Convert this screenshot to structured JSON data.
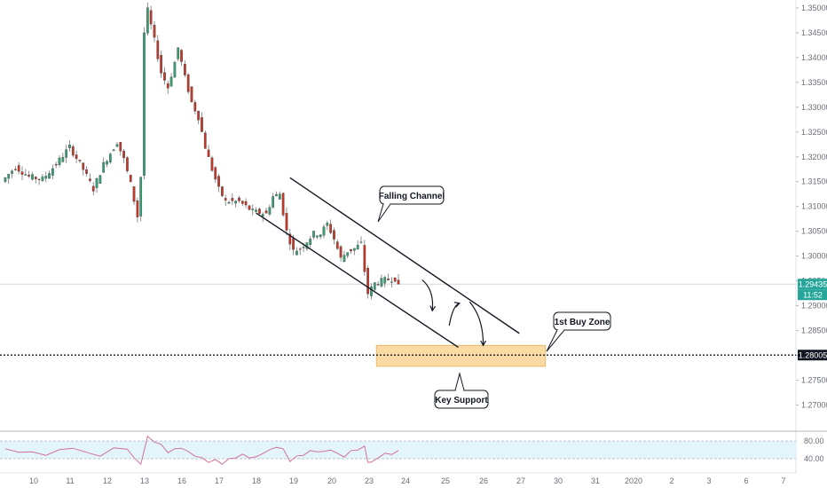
{
  "chart_data": {
    "type": "candlestick",
    "x_tick_labels": [
      "10",
      "11",
      "12",
      "13",
      "16",
      "17",
      "18",
      "19",
      "20",
      "23",
      "24",
      "25",
      "26",
      "27",
      "30",
      "31",
      "2020",
      "2",
      "3",
      "6",
      "7"
    ],
    "y_tick_labels": [
      "1.35000",
      "1.34500",
      "1.34000",
      "1.33500",
      "1.33000",
      "1.32500",
      "1.32000",
      "1.31500",
      "1.31000",
      "1.30500",
      "1.30000",
      "1.29500",
      "1.29000",
      "1.28500",
      "1.28000",
      "1.27500",
      "1.27000"
    ],
    "ylim": [
      1.2655,
      1.3515
    ],
    "price_path": [
      [
        0,
        1.315
      ],
      [
        4,
        1.318
      ],
      [
        8,
        1.316
      ],
      [
        12,
        1.3155
      ],
      [
        16,
        1.3185
      ],
      [
        20,
        1.322
      ],
      [
        24,
        1.3175
      ],
      [
        27,
        1.3135
      ],
      [
        30,
        1.3185
      ],
      [
        34,
        1.323
      ],
      [
        36,
        1.3195
      ],
      [
        38,
        1.3145
      ],
      [
        40,
        1.308
      ],
      [
        40.5,
        1.307
      ],
      [
        41,
        1.316
      ],
      [
        42,
        1.345
      ],
      [
        43,
        1.3495
      ],
      [
        45,
        1.3435
      ],
      [
        47,
        1.337
      ],
      [
        49,
        1.334
      ],
      [
        51,
        1.339
      ],
      [
        52,
        1.342
      ],
      [
        54,
        1.336
      ],
      [
        56,
        1.331
      ],
      [
        58,
        1.328
      ],
      [
        60,
        1.322
      ],
      [
        62,
        1.3175
      ],
      [
        64,
        1.3135
      ],
      [
        66,
        1.311
      ],
      [
        70,
        1.311
      ],
      [
        74,
        1.309
      ],
      [
        78,
        1.3085
      ],
      [
        80,
        1.312
      ],
      [
        82,
        1.3125
      ],
      [
        84,
        1.305
      ],
      [
        86,
        1.301
      ],
      [
        88,
        1.3015
      ],
      [
        90,
        1.303
      ],
      [
        92,
        1.3045
      ],
      [
        94,
        1.3045
      ],
      [
        96,
        1.3065
      ],
      [
        98,
        1.3035
      ],
      [
        100,
        1.2995
      ],
      [
        102,
        1.301
      ],
      [
        104,
        1.3015
      ],
      [
        106,
        1.3025
      ],
      [
        107,
        1.297
      ],
      [
        108,
        1.2925
      ],
      [
        109,
        1.2935
      ],
      [
        110,
        1.2945
      ],
      [
        113,
        1.2952
      ],
      [
        116,
        1.2955
      ]
    ],
    "last_price": "1.29435",
    "countdown": "11:52",
    "key_level_label": "1.28005",
    "key_level_value": 1.28005,
    "channel_upper": [
      [
        1.3165,
        79
      ],
      [
        1.2846,
        143
      ]
    ],
    "channel_lower": [
      [
        1.3094,
        69
      ],
      [
        1.2818,
        125
      ]
    ],
    "buy_zone": {
      "x_range": [
        104,
        152
      ],
      "y_range": [
        1.2778,
        1.282
      ]
    },
    "arrows": [
      {
        "from": [
          1.2952,
          118
        ],
        "to": [
          1.289,
          121
        ]
      },
      {
        "from": [
          1.286,
          126
        ],
        "to": [
          1.2905,
          129
        ]
      },
      {
        "from": [
          1.2908,
          132
        ],
        "to": [
          1.282,
          136
        ]
      }
    ],
    "annotations": [
      {
        "text": "Falling Channel",
        "anchor": [
          1.306,
          105
        ]
      },
      {
        "text": "1st Buy Zone",
        "anchor": [
          1.2812,
          153
        ]
      },
      {
        "text": "Key Support",
        "anchor": [
          1.2778,
          128
        ]
      }
    ],
    "indicator": {
      "tick_labels": [
        "80.00",
        "40.00"
      ],
      "levels": [
        80,
        40
      ],
      "ylim": [
        20,
        100
      ],
      "values": [
        [
          0,
          60
        ],
        [
          4,
          57
        ],
        [
          8,
          53
        ],
        [
          12,
          50
        ],
        [
          16,
          58
        ],
        [
          20,
          66
        ],
        [
          24,
          52
        ],
        [
          28,
          48
        ],
        [
          32,
          62
        ],
        [
          36,
          64
        ],
        [
          38,
          40
        ],
        [
          40,
          30
        ],
        [
          42,
          88
        ],
        [
          44,
          80
        ],
        [
          46,
          70
        ],
        [
          48,
          56
        ],
        [
          50,
          60
        ],
        [
          52,
          66
        ],
        [
          54,
          54
        ],
        [
          56,
          48
        ],
        [
          58,
          40
        ],
        [
          60,
          34
        ],
        [
          62,
          36
        ],
        [
          64,
          30
        ],
        [
          66,
          38
        ],
        [
          68,
          44
        ],
        [
          70,
          48
        ],
        [
          72,
          44
        ],
        [
          74,
          42
        ],
        [
          76,
          54
        ],
        [
          78,
          58
        ],
        [
          80,
          68
        ],
        [
          82,
          60
        ],
        [
          84,
          36
        ],
        [
          86,
          44
        ],
        [
          88,
          50
        ],
        [
          90,
          56
        ],
        [
          92,
          58
        ],
        [
          94,
          54
        ],
        [
          96,
          62
        ],
        [
          98,
          50
        ],
        [
          100,
          46
        ],
        [
          102,
          56
        ],
        [
          104,
          62
        ],
        [
          106,
          66
        ],
        [
          107,
          34
        ],
        [
          108,
          30
        ],
        [
          110,
          44
        ],
        [
          112,
          50
        ],
        [
          114,
          52
        ],
        [
          116,
          56
        ]
      ]
    }
  }
}
